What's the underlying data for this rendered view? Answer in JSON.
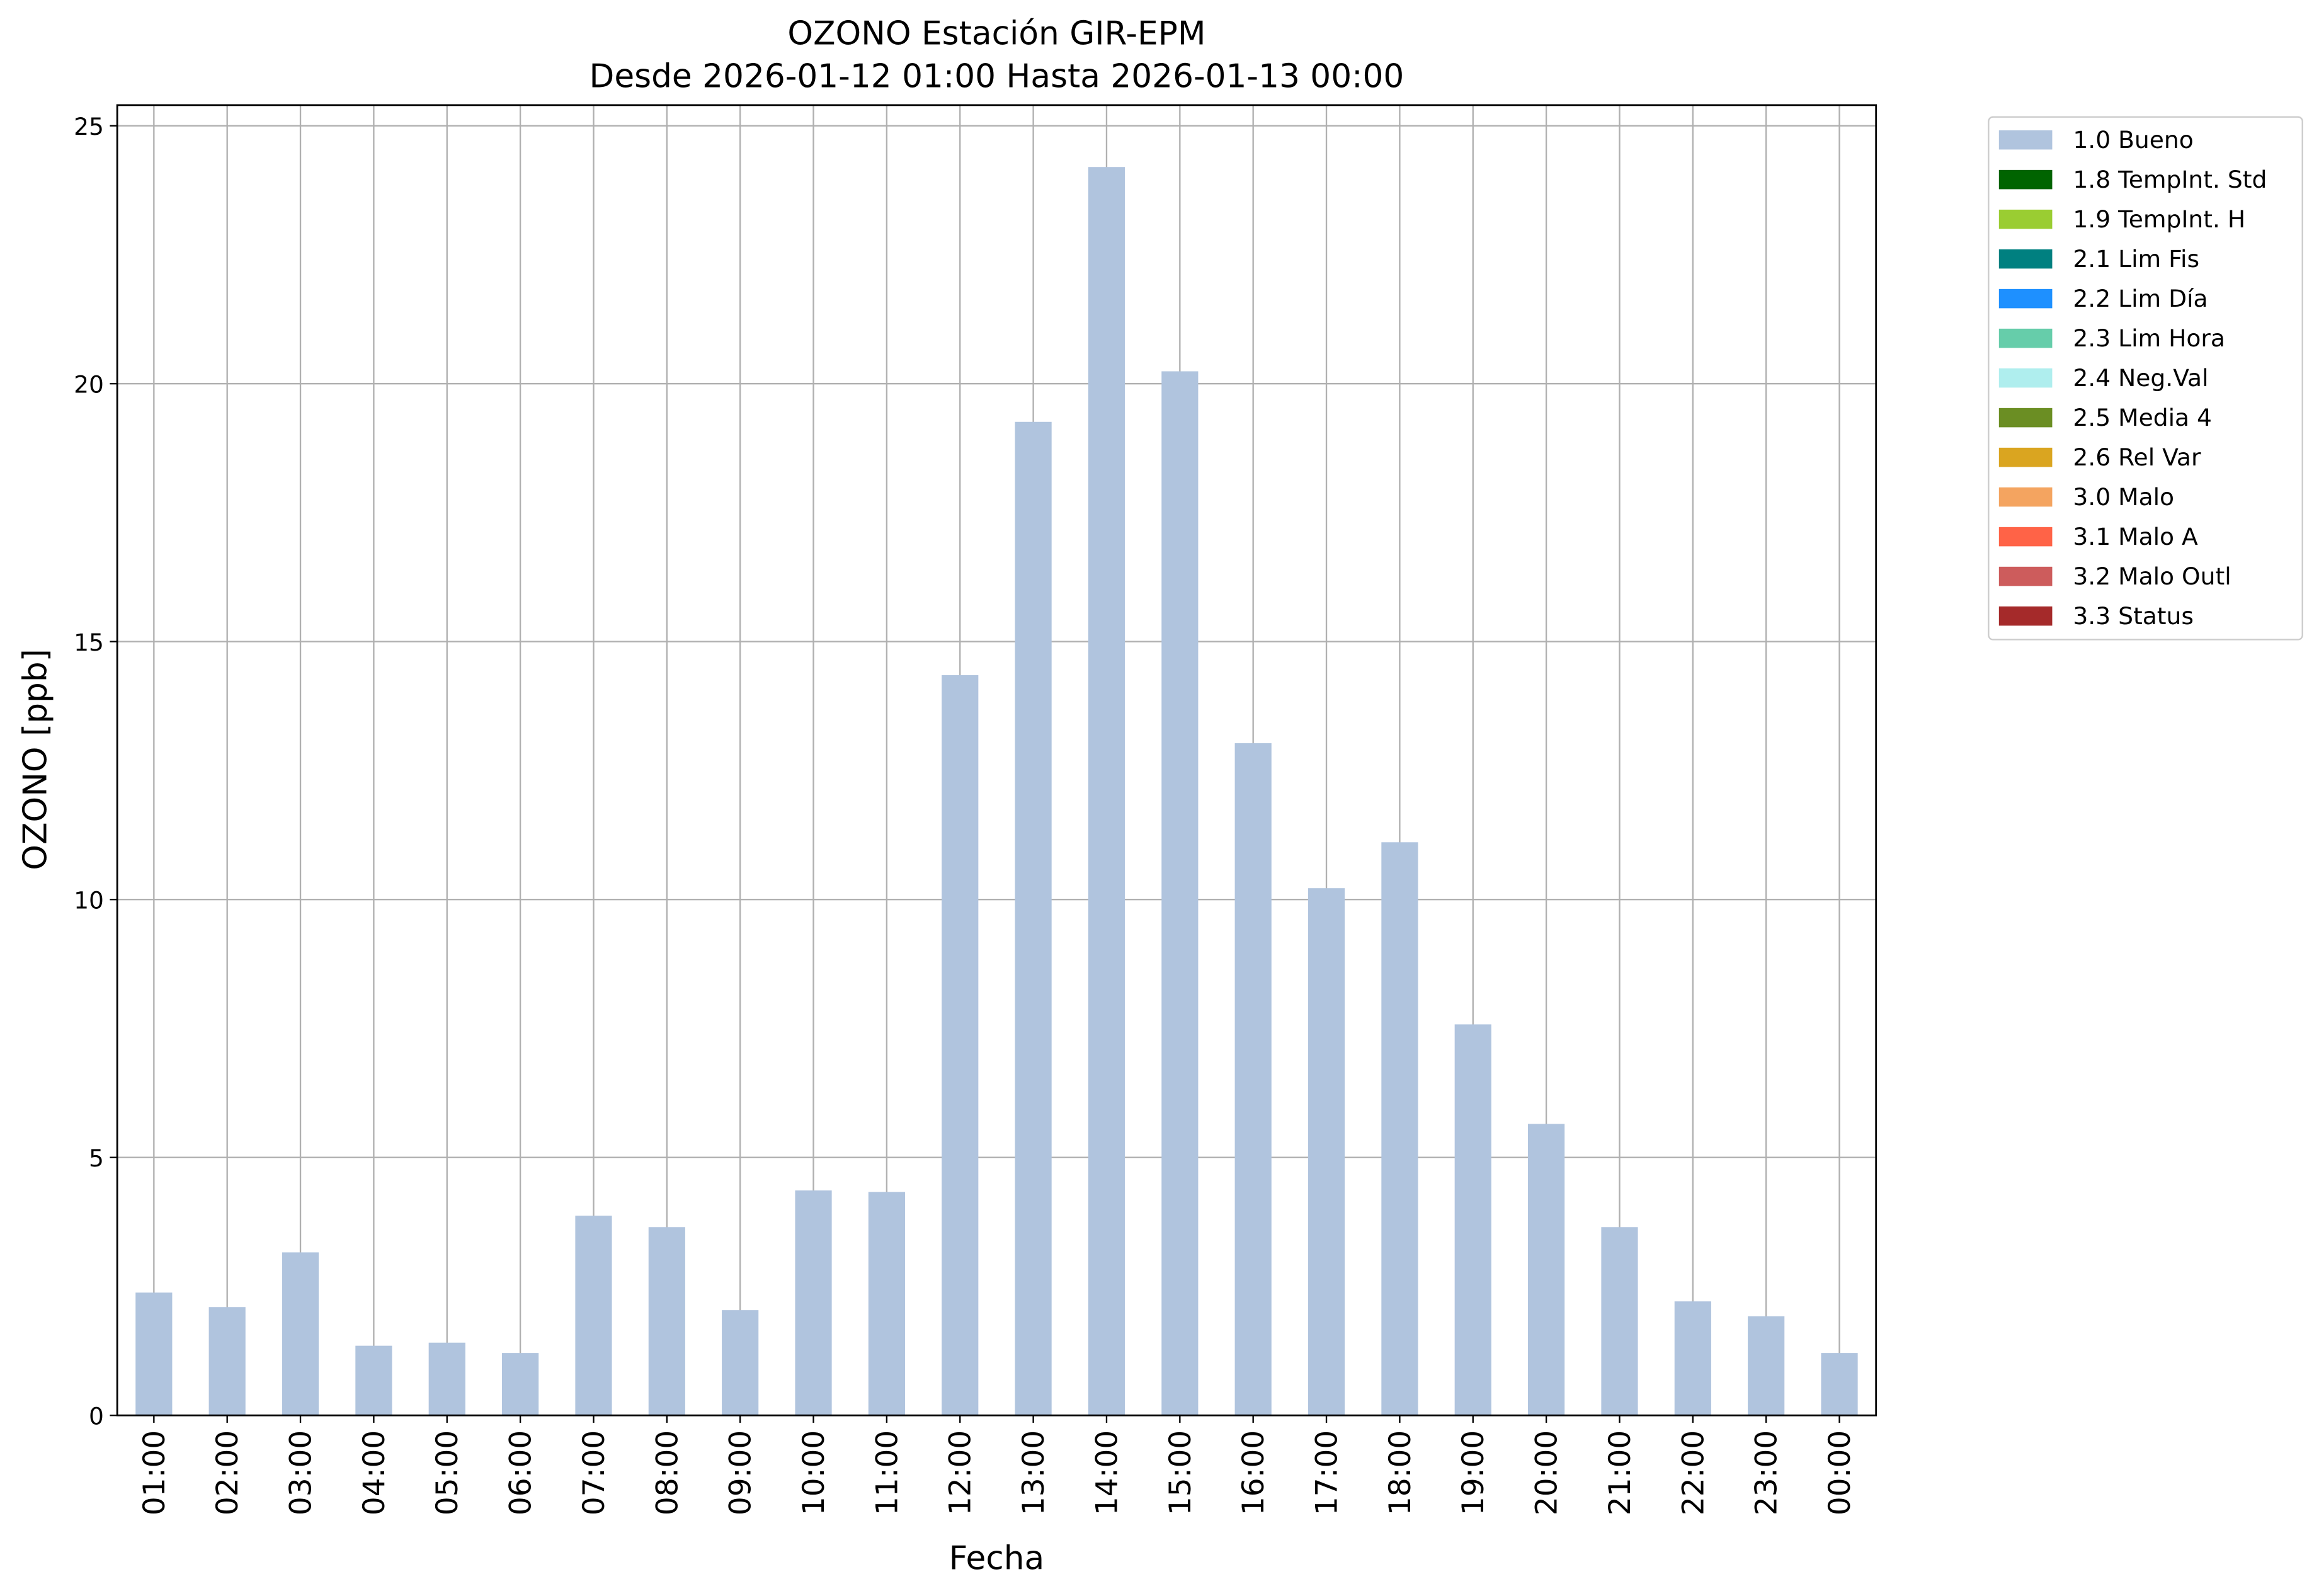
{
  "chart_data": {
    "type": "bar",
    "title": "OZONO Estación GIR-EPM",
    "subtitle": "Desde 2026-01-12 01:00 Hasta 2026-01-13 00:00",
    "xlabel": "Fecha",
    "ylabel": "OZONO [ppb]",
    "categories": [
      "01:00",
      "02:00",
      "03:00",
      "04:00",
      "05:00",
      "06:00",
      "07:00",
      "08:00",
      "09:00",
      "10:00",
      "11:00",
      "12:00",
      "13:00",
      "14:00",
      "15:00",
      "16:00",
      "17:00",
      "18:00",
      "19:00",
      "20:00",
      "21:00",
      "22:00",
      "23:00",
      "00:00"
    ],
    "series": [
      {
        "name": "1.0 Bueno",
        "color": "#b0c4de",
        "values": [
          2.38,
          2.1,
          3.16,
          1.35,
          1.41,
          1.21,
          3.87,
          3.65,
          2.04,
          4.36,
          4.33,
          14.35,
          19.26,
          24.2,
          20.24,
          13.03,
          10.22,
          11.11,
          7.58,
          5.65,
          3.65,
          2.21,
          1.92,
          1.21
        ]
      },
      {
        "name": "1.8 TempInt. Std",
        "color": "#006400"
      },
      {
        "name": "1.9 TempInt. H",
        "color": "#9acd32"
      },
      {
        "name": "2.1 Lim Fis",
        "color": "#008080"
      },
      {
        "name": "2.2 Lim Día",
        "color": "#1e90ff"
      },
      {
        "name": "2.3 Lim Hora",
        "color": "#66cdaa"
      },
      {
        "name": "2.4 Neg.Val",
        "color": "#afeeee"
      },
      {
        "name": "2.5 Media 4",
        "color": "#6b8e23"
      },
      {
        "name": "2.6 Rel Var",
        "color": "#daa520"
      },
      {
        "name": "3.0 Malo",
        "color": "#f4a460"
      },
      {
        "name": "3.1 Malo A",
        "color": "#ff6347"
      },
      {
        "name": "3.2 Malo Outl",
        "color": "#cd5c5c"
      },
      {
        "name": "3.3 Status",
        "color": "#a52a2a"
      }
    ],
    "ylim": [
      0,
      25.4
    ],
    "yticks": [
      0,
      5,
      10,
      15,
      20,
      25
    ],
    "grid": true,
    "legend": "outside-upper-right"
  }
}
